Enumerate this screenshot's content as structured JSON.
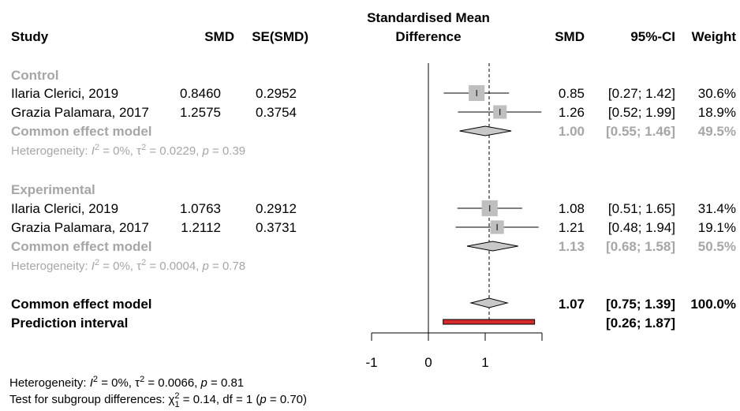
{
  "chart_data": {
    "type": "forest",
    "effect_label": "Standardised Mean Difference",
    "columns": {
      "study": "Study",
      "smd_input": "SMD",
      "se_input": "SE(SMD)",
      "effect_top": "Standardised Mean",
      "effect_bottom": "Difference",
      "smd": "SMD",
      "ci": "95%-CI",
      "weight": "Weight"
    },
    "xaxis": {
      "ticks": [
        -1,
        0,
        1
      ],
      "tick_labels": [
        "-1",
        "0",
        "1"
      ],
      "xlim": [
        -1,
        2.0
      ],
      "null_value": 0,
      "overall_effect": 1.07
    },
    "subgroups": [
      {
        "name": "Control",
        "studies": [
          {
            "label": "Ilaria Clerici, 2019",
            "smd_in": "0.8460",
            "se_in": "0.2952",
            "smd": 0.85,
            "lower": 0.27,
            "upper": 1.42,
            "smd_text": "0.85",
            "ci_text": "[0.27; 1.42]",
            "weight_text": "30.6%",
            "weight": 30.6
          },
          {
            "label": "Grazia Palamara, 2017",
            "smd_in": "1.2575",
            "se_in": "0.3754",
            "smd": 1.26,
            "lower": 0.52,
            "upper": 1.99,
            "smd_text": "1.26",
            "ci_text": "[0.52; 1.99]",
            "weight_text": "18.9%",
            "weight": 18.9
          }
        ],
        "pooled": {
          "label": "Common effect model",
          "smd": 1.0,
          "lower": 0.55,
          "upper": 1.46,
          "smd_text": "1.00",
          "ci_text": "[0.55; 1.46]",
          "weight_text": "49.5%"
        },
        "heterogeneity": {
          "prefix": "Heterogeneity: ",
          "i2": " = 0%, ",
          "tau2": " = 0.0229, ",
          "p": " = 0.39"
        }
      },
      {
        "name": "Experimental",
        "studies": [
          {
            "label": "Ilaria Clerici, 2019",
            "smd_in": "1.0763",
            "se_in": "0.2912",
            "smd": 1.08,
            "lower": 0.51,
            "upper": 1.65,
            "smd_text": "1.08",
            "ci_text": "[0.51; 1.65]",
            "weight_text": "31.4%",
            "weight": 31.4
          },
          {
            "label": "Grazia Palamara, 2017",
            "smd_in": "1.2112",
            "se_in": "0.3731",
            "smd": 1.21,
            "lower": 0.48,
            "upper": 1.94,
            "smd_text": "1.21",
            "ci_text": "[0.48; 1.94]",
            "weight_text": "19.1%",
            "weight": 19.1
          }
        ],
        "pooled": {
          "label": "Common effect model",
          "smd": 1.13,
          "lower": 0.68,
          "upper": 1.58,
          "smd_text": "1.13",
          "ci_text": "[0.68; 1.58]",
          "weight_text": "50.5%"
        },
        "heterogeneity": {
          "prefix": "Heterogeneity: ",
          "i2": " = 0%, ",
          "tau2": " = 0.0004, ",
          "p": " = 0.78"
        }
      }
    ],
    "overall": {
      "label": "Common effect model",
      "smd": 1.07,
      "lower": 0.75,
      "upper": 1.39,
      "smd_text": "1.07",
      "ci_text": "[0.75; 1.39]",
      "weight_text": "100.0%"
    },
    "prediction": {
      "label": "Prediction interval",
      "lower": 0.26,
      "upper": 1.87,
      "ci_text": "[0.26; 1.87]"
    },
    "overall_heterogeneity": {
      "prefix": "Heterogeneity: ",
      "i2": " = 0%, ",
      "tau2": " = 0.0066, ",
      "p": " = 0.81"
    },
    "subgroup_test": {
      "prefix": "Test for subgroup differences: ",
      "chi": " = 0.14, df = 1 (",
      "p": " = 0.70)"
    },
    "colors": {
      "subgroup_text": "#a6a6a6",
      "square": "#bfbfbf",
      "diamond": "#c8c8c8",
      "prediction": "#d42a2a"
    }
  }
}
